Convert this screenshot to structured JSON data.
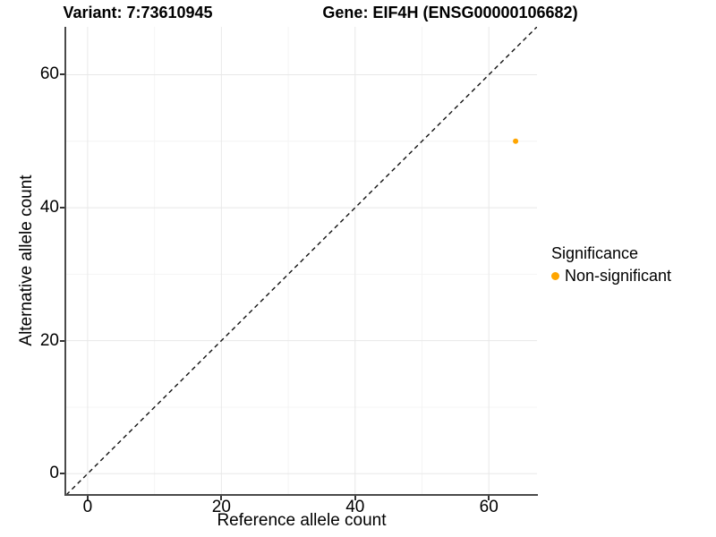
{
  "header": {
    "variant_title": "Variant: 7:73610945",
    "gene_title": "Gene: EIF4H (ENSG00000106682)"
  },
  "axes": {
    "x_label": "Reference allele count",
    "y_label": "Alternative allele count"
  },
  "legend": {
    "title": "Significance",
    "entries": [
      {
        "label": "Non-significant",
        "color": "#FFA500",
        "marker": "circle-icon"
      }
    ]
  },
  "chart_data": {
    "type": "scatter",
    "title": "Variant: 7:73610945 / Gene: EIF4H (ENSG00000106682)",
    "xlabel": "Reference allele count",
    "ylabel": "Alternative allele count",
    "xlim": [
      -3.2,
      67.2
    ],
    "ylim": [
      -3.2,
      67.2
    ],
    "x_ticks": [
      0,
      20,
      40,
      60
    ],
    "y_ticks": [
      0,
      20,
      40,
      60
    ],
    "x_minor_ticks": [
      10,
      30,
      50
    ],
    "y_minor_ticks": [
      10,
      30,
      50
    ],
    "grid": true,
    "legend_position": "right",
    "series": [
      {
        "name": "Non-significant",
        "color": "#FFA500",
        "marker_size_px": 6,
        "points": [
          {
            "x": 64,
            "y": 50
          }
        ]
      }
    ],
    "reference_line": {
      "type": "dashed",
      "slope": 1,
      "intercept": 0,
      "color": "#111111"
    }
  },
  "colors": {
    "accent_nonsignificant": "#FFA500",
    "grid_major": "#E8E8E8",
    "grid_minor": "#F4F4F4",
    "axis_line": "#4A4A4A"
  }
}
